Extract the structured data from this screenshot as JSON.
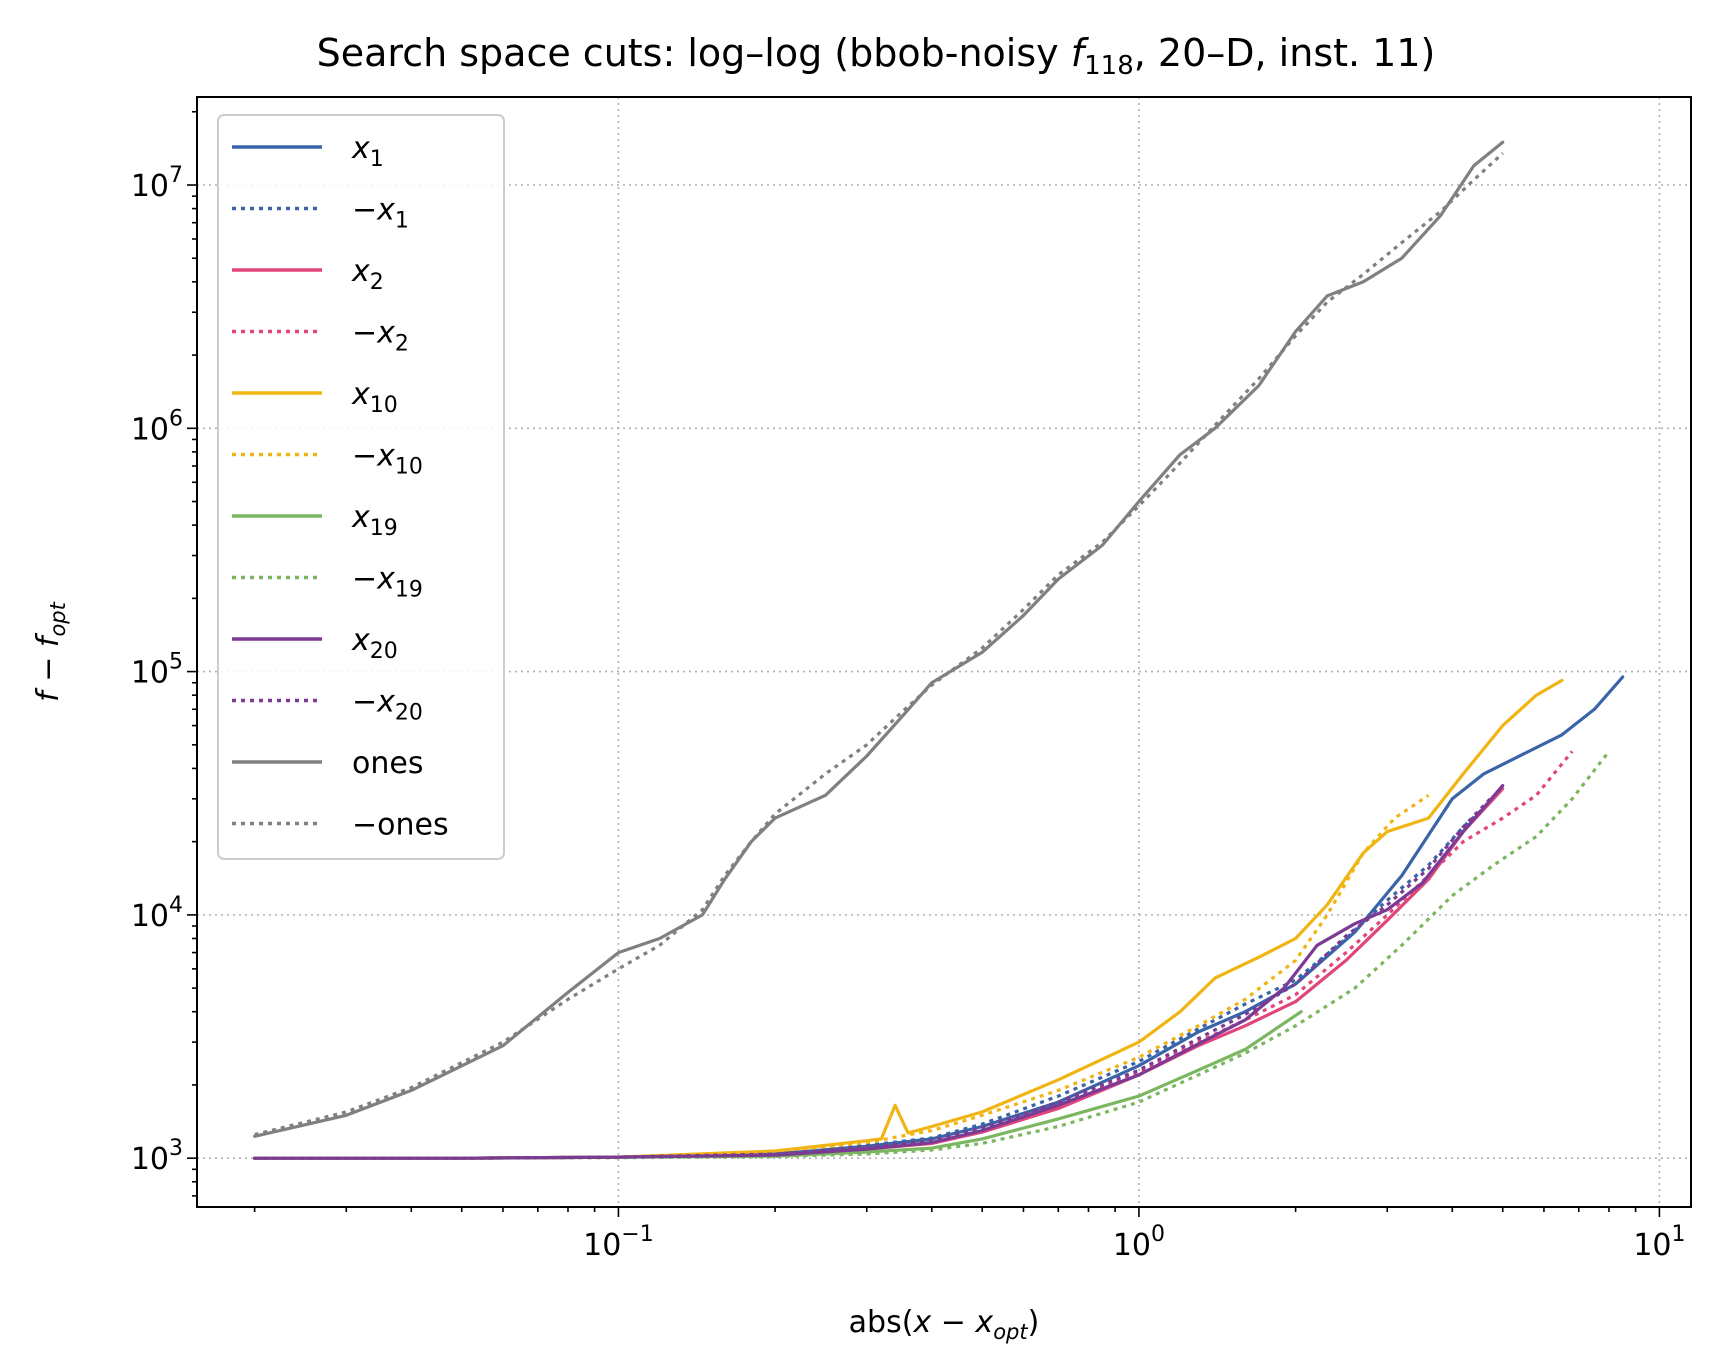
{
  "chart_data": {
    "type": "line",
    "title": "Search space cuts: log–log (bbob-noisy ",
    "title_func": "f",
    "title_sub": "118",
    "title_tail": ", 20–D, inst. 11)",
    "xlabel_pre": "abs(",
    "xlabel_var": "x",
    "xlabel_mid": " − ",
    "xlabel_var2": "x",
    "xlabel_sub": "opt",
    "xlabel_post": ")",
    "ylabel_var": "f",
    "ylabel_mid": " − ",
    "ylabel_var2": "f",
    "ylabel_sub": "opt",
    "x_scale": "log",
    "y_scale": "log",
    "xlim": [
      0.0155,
      11.5
    ],
    "ylim": [
      630,
      23000000
    ],
    "x_ticks": [
      {
        "value": 0.1,
        "base": "10",
        "exp": "−1"
      },
      {
        "value": 1,
        "base": "10",
        "exp": "0"
      },
      {
        "value": 10,
        "base": "10",
        "exp": "1"
      }
    ],
    "y_ticks": [
      {
        "value": 1000,
        "base": "10",
        "exp": "3"
      },
      {
        "value": 10000,
        "base": "10",
        "exp": "4"
      },
      {
        "value": 100000,
        "base": "10",
        "exp": "5"
      },
      {
        "value": 1000000,
        "base": "10",
        "exp": "6"
      },
      {
        "value": 10000000,
        "base": "10",
        "exp": "7"
      }
    ],
    "grid": true,
    "legend_position": "upper left",
    "series": [
      {
        "name": "x",
        "sub": "1",
        "sign": "",
        "color": "#3a64a8",
        "style": "solid",
        "points": [
          [
            0.02,
            1000
          ],
          [
            0.05,
            1000
          ],
          [
            0.1,
            1010
          ],
          [
            0.2,
            1040
          ],
          [
            0.3,
            1120
          ],
          [
            0.4,
            1200
          ],
          [
            0.5,
            1350
          ],
          [
            0.7,
            1700
          ],
          [
            1.0,
            2400
          ],
          [
            1.3,
            3300
          ],
          [
            1.6,
            4000
          ],
          [
            2.0,
            5200
          ],
          [
            2.6,
            8500
          ],
          [
            3.2,
            14500
          ],
          [
            4.0,
            30000
          ],
          [
            4.6,
            38000
          ],
          [
            5.5,
            46000
          ],
          [
            6.5,
            55000
          ],
          [
            7.5,
            70000
          ],
          [
            8.5,
            95000
          ]
        ]
      },
      {
        "name": "−x",
        "sub": "1",
        "sign": "-",
        "color": "#3a64a8",
        "style": "dotted",
        "points": [
          [
            0.02,
            1000
          ],
          [
            0.05,
            1000
          ],
          [
            0.1,
            1010
          ],
          [
            0.2,
            1050
          ],
          [
            0.3,
            1130
          ],
          [
            0.4,
            1210
          ],
          [
            0.5,
            1380
          ],
          [
            0.7,
            1800
          ],
          [
            1.0,
            2500
          ],
          [
            1.3,
            3400
          ],
          [
            1.6,
            4300
          ],
          [
            2.0,
            5400
          ],
          [
            2.5,
            8000
          ],
          [
            3.0,
            11500
          ],
          [
            3.6,
            16000
          ],
          [
            4.2,
            23000
          ],
          [
            4.8,
            30000
          ],
          [
            5.0,
            33000
          ]
        ]
      },
      {
        "name": "x",
        "sub": "2",
        "sign": "",
        "color": "#e0457b",
        "style": "solid",
        "points": [
          [
            0.02,
            1000
          ],
          [
            0.05,
            1000
          ],
          [
            0.1,
            1010
          ],
          [
            0.2,
            1030
          ],
          [
            0.3,
            1090
          ],
          [
            0.4,
            1150
          ],
          [
            0.5,
            1280
          ],
          [
            0.7,
            1600
          ],
          [
            1.0,
            2200
          ],
          [
            1.3,
            2900
          ],
          [
            1.6,
            3500
          ],
          [
            2.0,
            4400
          ],
          [
            2.5,
            6500
          ],
          [
            3.0,
            9500
          ],
          [
            3.6,
            14000
          ],
          [
            4.2,
            22000
          ],
          [
            4.8,
            30000
          ],
          [
            5.0,
            33000
          ]
        ]
      },
      {
        "name": "−x",
        "sub": "2",
        "sign": "-",
        "color": "#e0457b",
        "style": "dotted",
        "points": [
          [
            0.02,
            1000
          ],
          [
            0.05,
            1000
          ],
          [
            0.1,
            1010
          ],
          [
            0.2,
            1030
          ],
          [
            0.3,
            1100
          ],
          [
            0.4,
            1170
          ],
          [
            0.5,
            1300
          ],
          [
            0.7,
            1650
          ],
          [
            1.0,
            2250
          ],
          [
            1.3,
            3000
          ],
          [
            1.6,
            3700
          ],
          [
            2.0,
            4700
          ],
          [
            2.5,
            7000
          ],
          [
            3.0,
            10000
          ],
          [
            3.6,
            14500
          ],
          [
            4.2,
            20000
          ],
          [
            5.0,
            25000
          ],
          [
            5.8,
            31000
          ],
          [
            6.8,
            47000
          ]
        ]
      },
      {
        "name": "x",
        "sub": "10",
        "sign": "",
        "color": "#f0b514",
        "style": "solid",
        "points": [
          [
            0.02,
            1000
          ],
          [
            0.05,
            1000
          ],
          [
            0.1,
            1010
          ],
          [
            0.2,
            1070
          ],
          [
            0.3,
            1180
          ],
          [
            0.32,
            1200
          ],
          [
            0.34,
            1650
          ],
          [
            0.36,
            1270
          ],
          [
            0.4,
            1350
          ],
          [
            0.5,
            1550
          ],
          [
            0.7,
            2100
          ],
          [
            0.85,
            2550
          ],
          [
            1.0,
            3000
          ],
          [
            1.2,
            4000
          ],
          [
            1.4,
            5500
          ],
          [
            1.7,
            6700
          ],
          [
            2.0,
            8000
          ],
          [
            2.3,
            11000
          ],
          [
            2.7,
            18000
          ],
          [
            3.0,
            22000
          ],
          [
            3.6,
            25000
          ],
          [
            4.2,
            38000
          ],
          [
            5.0,
            60000
          ],
          [
            5.8,
            80000
          ],
          [
            6.5,
            92000
          ]
        ]
      },
      {
        "name": "−x",
        "sub": "10",
        "sign": "-",
        "color": "#f0b514",
        "style": "dotted",
        "points": [
          [
            0.02,
            1000
          ],
          [
            0.05,
            1000
          ],
          [
            0.1,
            1010
          ],
          [
            0.2,
            1060
          ],
          [
            0.3,
            1160
          ],
          [
            0.4,
            1300
          ],
          [
            0.5,
            1500
          ],
          [
            0.7,
            1900
          ],
          [
            1.0,
            2600
          ],
          [
            1.3,
            3500
          ],
          [
            1.6,
            4500
          ],
          [
            2.0,
            6500
          ],
          [
            2.3,
            10000
          ],
          [
            2.7,
            18000
          ],
          [
            3.1,
            25000
          ],
          [
            3.6,
            31000
          ]
        ]
      },
      {
        "name": "x",
        "sub": "19",
        "sign": "",
        "color": "#7bb661",
        "style": "solid",
        "points": [
          [
            0.02,
            1000
          ],
          [
            0.05,
            1000
          ],
          [
            0.1,
            1010
          ],
          [
            0.2,
            1020
          ],
          [
            0.3,
            1060
          ],
          [
            0.4,
            1100
          ],
          [
            0.5,
            1200
          ],
          [
            0.7,
            1450
          ],
          [
            1.0,
            1800
          ],
          [
            1.3,
            2300
          ],
          [
            1.6,
            2800
          ],
          [
            2.05,
            4000
          ]
        ]
      },
      {
        "name": "−x",
        "sub": "19",
        "sign": "-",
        "color": "#7bb661",
        "style": "dotted",
        "points": [
          [
            0.02,
            1000
          ],
          [
            0.05,
            1000
          ],
          [
            0.1,
            1005
          ],
          [
            0.2,
            1015
          ],
          [
            0.3,
            1040
          ],
          [
            0.4,
            1080
          ],
          [
            0.5,
            1150
          ],
          [
            0.7,
            1350
          ],
          [
            1.0,
            1700
          ],
          [
            1.3,
            2200
          ],
          [
            1.6,
            2700
          ],
          [
            2.0,
            3500
          ],
          [
            2.6,
            5000
          ],
          [
            3.2,
            7500
          ],
          [
            4.0,
            12000
          ],
          [
            4.8,
            16000
          ],
          [
            5.8,
            21000
          ],
          [
            6.8,
            30000
          ],
          [
            8.0,
            47000
          ]
        ]
      },
      {
        "name": "x",
        "sub": "20",
        "sign": "",
        "color": "#7b3a94",
        "style": "solid",
        "points": [
          [
            0.02,
            1000
          ],
          [
            0.05,
            1000
          ],
          [
            0.1,
            1010
          ],
          [
            0.2,
            1030
          ],
          [
            0.3,
            1090
          ],
          [
            0.4,
            1160
          ],
          [
            0.5,
            1300
          ],
          [
            0.7,
            1650
          ],
          [
            1.0,
            2200
          ],
          [
            1.3,
            2950
          ],
          [
            1.6,
            3700
          ],
          [
            1.9,
            5000
          ],
          [
            2.2,
            7500
          ],
          [
            2.6,
            9200
          ],
          [
            3.0,
            10500
          ],
          [
            3.5,
            13500
          ],
          [
            4.2,
            22000
          ],
          [
            5.0,
            34000
          ]
        ]
      },
      {
        "name": "−x",
        "sub": "20",
        "sign": "-",
        "color": "#7b3a94",
        "style": "dotted",
        "points": [
          [
            0.02,
            1000
          ],
          [
            0.05,
            1000
          ],
          [
            0.1,
            1010
          ],
          [
            0.2,
            1040
          ],
          [
            0.3,
            1110
          ],
          [
            0.4,
            1180
          ],
          [
            0.5,
            1330
          ],
          [
            0.7,
            1700
          ],
          [
            1.0,
            2300
          ],
          [
            1.3,
            3100
          ],
          [
            1.6,
            3900
          ],
          [
            2.0,
            5200
          ],
          [
            2.5,
            8200
          ],
          [
            3.0,
            11000
          ],
          [
            3.6,
            15500
          ],
          [
            4.2,
            23000
          ],
          [
            4.8,
            31000
          ]
        ]
      },
      {
        "name": "ones",
        "sub": "",
        "sign": "",
        "color": "#808080",
        "style": "solid",
        "points": [
          [
            0.02,
            1230
          ],
          [
            0.03,
            1500
          ],
          [
            0.04,
            1900
          ],
          [
            0.06,
            2900
          ],
          [
            0.08,
            4800
          ],
          [
            0.1,
            7000
          ],
          [
            0.12,
            8000
          ],
          [
            0.145,
            10000
          ],
          [
            0.16,
            14000
          ],
          [
            0.18,
            20000
          ],
          [
            0.2,
            25000
          ],
          [
            0.25,
            31000
          ],
          [
            0.3,
            45000
          ],
          [
            0.35,
            65000
          ],
          [
            0.4,
            90000
          ],
          [
            0.5,
            120000
          ],
          [
            0.6,
            170000
          ],
          [
            0.7,
            240000
          ],
          [
            0.85,
            330000
          ],
          [
            1.0,
            500000
          ],
          [
            1.2,
            780000
          ],
          [
            1.4,
            1000000
          ],
          [
            1.7,
            1500000
          ],
          [
            2.0,
            2500000
          ],
          [
            2.3,
            3500000
          ],
          [
            2.7,
            4000000
          ],
          [
            3.2,
            5000000
          ],
          [
            3.8,
            7500000
          ],
          [
            4.4,
            12000000
          ],
          [
            5.0,
            15000000
          ]
        ]
      },
      {
        "name": "−ones",
        "sub": "",
        "sign": "-",
        "color": "#808080",
        "style": "dotted",
        "points": [
          [
            0.02,
            1250
          ],
          [
            0.03,
            1550
          ],
          [
            0.04,
            1950
          ],
          [
            0.06,
            3000
          ],
          [
            0.08,
            4500
          ],
          [
            0.1,
            6000
          ],
          [
            0.12,
            7500
          ],
          [
            0.145,
            10500
          ],
          [
            0.16,
            14500
          ],
          [
            0.18,
            20000
          ],
          [
            0.2,
            26000
          ],
          [
            0.25,
            38000
          ],
          [
            0.3,
            50000
          ],
          [
            0.35,
            68000
          ],
          [
            0.4,
            88000
          ],
          [
            0.5,
            125000
          ],
          [
            0.6,
            180000
          ],
          [
            0.7,
            250000
          ],
          [
            0.85,
            340000
          ],
          [
            1.0,
            480000
          ],
          [
            1.2,
            720000
          ],
          [
            1.4,
            1030000
          ],
          [
            1.7,
            1600000
          ],
          [
            2.0,
            2400000
          ],
          [
            2.3,
            3300000
          ],
          [
            2.7,
            4300000
          ],
          [
            3.2,
            5800000
          ],
          [
            3.8,
            7800000
          ],
          [
            4.4,
            10500000
          ],
          [
            5.0,
            13500000
          ]
        ]
      }
    ]
  }
}
